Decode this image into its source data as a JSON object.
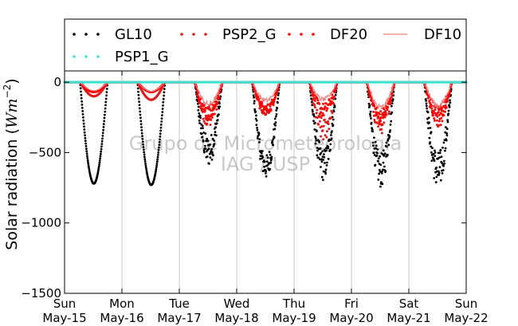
{
  "chart_data": {
    "type": "scatter",
    "ylabel": "Solar radiation (W m⁻²)",
    "ylabel_plain": "Solar radiation (",
    "ylabel_unit": "Wm",
    "ylabel_exp": "−2",
    "ylabel_close": ")",
    "ylim": [
      -1500,
      80
    ],
    "yticks": [
      0,
      -500,
      -1000,
      -1500
    ],
    "ytick_labels": [
      "0",
      "−500",
      "−1000",
      "−1500"
    ],
    "xlim_days": [
      0,
      7
    ],
    "xtick_labels": [
      {
        "day": "Sun",
        "date": "May-15"
      },
      {
        "day": "Mon",
        "date": "May-16"
      },
      {
        "day": "Tue",
        "date": "May-17"
      },
      {
        "day": "Wed",
        "date": "May-18"
      },
      {
        "day": "Thu",
        "date": "May-19"
      },
      {
        "day": "Fri",
        "date": "May-20"
      },
      {
        "day": "Sat",
        "date": "May-21"
      },
      {
        "day": "Sun",
        "date": "May-22"
      }
    ],
    "grid": "vertical",
    "legend_position": "top",
    "watermark": [
      "Grupo de Micrometeorologia",
      "IAG / USP"
    ],
    "series": [
      {
        "name": "GL10",
        "style": "dots",
        "color": "#000000",
        "daily_min": [
          -720,
          -730,
          -600,
          -690,
          -700,
          -750,
          -770
        ]
      },
      {
        "name": "PSP2_G",
        "style": "dots",
        "color": "#e11a1a",
        "daily_min": [
          -100,
          -125,
          -320,
          -250,
          -430,
          -370,
          -320
        ]
      },
      {
        "name": "DF20",
        "style": "dots",
        "color": "#ff0000",
        "daily_min": [
          -70,
          -70,
          -280,
          -230,
          -250,
          -310,
          -290
        ]
      },
      {
        "name": "DF10",
        "style": "line",
        "color": "#f08080",
        "daily_min": [
          -60,
          -65,
          -180,
          -150,
          -140,
          -210,
          -190
        ]
      },
      {
        "name": "PSP1_G",
        "style": "dots",
        "color": "#40e0d0",
        "daily_min": [
          0,
          0,
          0,
          0,
          0,
          0,
          0
        ]
      }
    ]
  }
}
